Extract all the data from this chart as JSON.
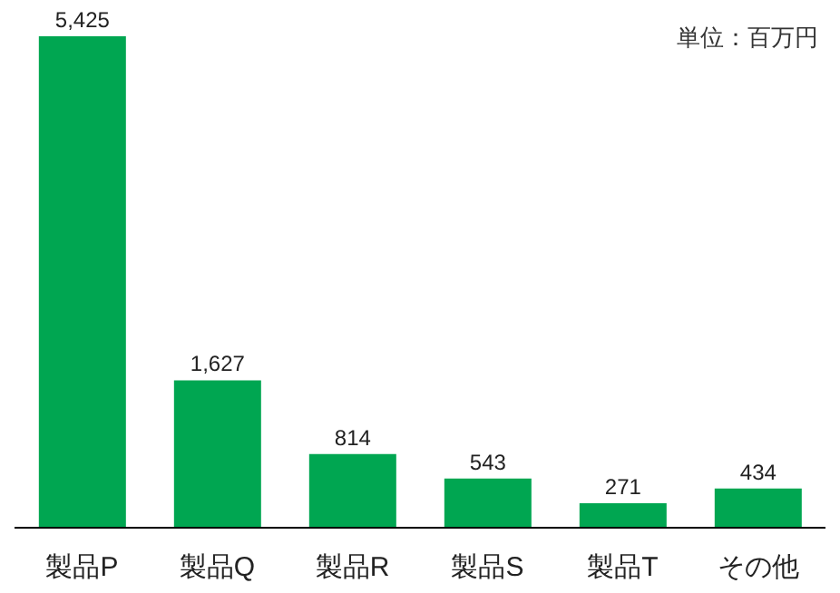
{
  "chart_data": {
    "type": "bar",
    "annotations": [
      "単位：百万円"
    ],
    "categories": [
      "製品P",
      "製品Q",
      "製品R",
      "製品S",
      "製品T",
      "その他"
    ],
    "values": [
      5425,
      1627,
      814,
      543,
      271,
      434
    ],
    "value_labels": [
      "5,425",
      "1,627",
      "814",
      "543",
      "271",
      "434"
    ],
    "color": "#00a651"
  }
}
